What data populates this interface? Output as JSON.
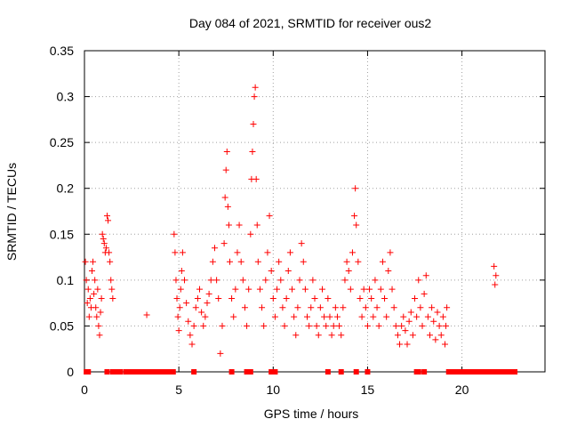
{
  "chart_data": {
    "type": "scatter",
    "title": "Day 084 of 2021, SRMTID for receiver ous2",
    "xlabel": "GPS time / hours",
    "ylabel": "SRMTID / TECUs",
    "xlim": [
      0,
      24.4
    ],
    "ylim": [
      0,
      0.35
    ],
    "xticks": [
      0,
      5,
      10,
      15,
      20
    ],
    "yticks": [
      0,
      0.05,
      0.1,
      0.15,
      0.2,
      0.25,
      0.3,
      0.35
    ],
    "xtick_labels": [
      "0",
      "5",
      "10",
      "15",
      "20"
    ],
    "ytick_labels": [
      "0",
      "0.05",
      "0.1",
      "0.15",
      "0.2",
      "0.25",
      "0.3",
      "0.35"
    ],
    "grid": true,
    "marker": "+",
    "series": [
      {
        "name": "SRMTID",
        "color": "#ff0000",
        "points": [
          [
            0.05,
            0.12
          ],
          [
            0.1,
            0.1
          ],
          [
            0.15,
            0.075
          ],
          [
            0.2,
            0.09
          ],
          [
            0.25,
            0.06
          ],
          [
            0.3,
            0.08
          ],
          [
            0.35,
            0.07
          ],
          [
            0.4,
            0.11
          ],
          [
            0.45,
            0.12
          ],
          [
            0.5,
            0.085
          ],
          [
            0.55,
            0.1
          ],
          [
            0.6,
            0.07
          ],
          [
            0.65,
            0.06
          ],
          [
            0.7,
            0.09
          ],
          [
            0.75,
            0.05
          ],
          [
            0.8,
            0.04
          ],
          [
            0.85,
            0.065
          ],
          [
            0.9,
            0.08
          ],
          [
            0.95,
            0.15
          ],
          [
            1.0,
            0.145
          ],
          [
            1.05,
            0.14
          ],
          [
            1.1,
            0.13
          ],
          [
            1.15,
            0.135
          ],
          [
            1.2,
            0.17
          ],
          [
            1.25,
            0.165
          ],
          [
            1.3,
            0.13
          ],
          [
            1.35,
            0.12
          ],
          [
            1.4,
            0.1
          ],
          [
            1.45,
            0.09
          ],
          [
            1.5,
            0.08
          ],
          [
            3.3,
            0.062
          ],
          [
            4.75,
            0.15
          ],
          [
            4.8,
            0.13
          ],
          [
            4.85,
            0.1
          ],
          [
            4.9,
            0.08
          ],
          [
            4.95,
            0.06
          ],
          [
            5.0,
            0.045
          ],
          [
            5.05,
            0.07
          ],
          [
            5.1,
            0.09
          ],
          [
            5.15,
            0.11
          ],
          [
            5.2,
            0.13
          ],
          [
            5.3,
            0.1
          ],
          [
            5.4,
            0.075
          ],
          [
            5.5,
            0.055
          ],
          [
            5.6,
            0.04
          ],
          [
            5.7,
            0.03
          ],
          [
            5.8,
            0.05
          ],
          [
            5.9,
            0.07
          ],
          [
            6.0,
            0.08
          ],
          [
            6.1,
            0.09
          ],
          [
            6.2,
            0.065
          ],
          [
            6.3,
            0.05
          ],
          [
            6.4,
            0.06
          ],
          [
            6.5,
            0.075
          ],
          [
            6.6,
            0.085
          ],
          [
            6.7,
            0.1
          ],
          [
            6.8,
            0.12
          ],
          [
            6.9,
            0.135
          ],
          [
            7.0,
            0.1
          ],
          [
            7.1,
            0.08
          ],
          [
            7.2,
            0.02
          ],
          [
            7.3,
            0.05
          ],
          [
            7.4,
            0.14
          ],
          [
            7.45,
            0.19
          ],
          [
            7.5,
            0.22
          ],
          [
            7.55,
            0.24
          ],
          [
            7.6,
            0.18
          ],
          [
            7.65,
            0.16
          ],
          [
            7.7,
            0.12
          ],
          [
            7.8,
            0.08
          ],
          [
            7.9,
            0.06
          ],
          [
            8.0,
            0.09
          ],
          [
            8.1,
            0.13
          ],
          [
            8.2,
            0.16
          ],
          [
            8.3,
            0.12
          ],
          [
            8.4,
            0.1
          ],
          [
            8.5,
            0.07
          ],
          [
            8.6,
            0.05
          ],
          [
            8.7,
            0.09
          ],
          [
            8.8,
            0.15
          ],
          [
            8.85,
            0.21
          ],
          [
            8.9,
            0.24
          ],
          [
            8.95,
            0.27
          ],
          [
            9.0,
            0.3
          ],
          [
            9.05,
            0.31
          ],
          [
            9.1,
            0.21
          ],
          [
            9.15,
            0.16
          ],
          [
            9.2,
            0.12
          ],
          [
            9.3,
            0.09
          ],
          [
            9.4,
            0.07
          ],
          [
            9.5,
            0.05
          ],
          [
            9.6,
            0.1
          ],
          [
            9.7,
            0.13
          ],
          [
            9.8,
            0.17
          ],
          [
            9.9,
            0.11
          ],
          [
            10.0,
            0.08
          ],
          [
            10.1,
            0.06
          ],
          [
            10.2,
            0.09
          ],
          [
            10.3,
            0.12
          ],
          [
            10.4,
            0.1
          ],
          [
            10.5,
            0.07
          ],
          [
            10.6,
            0.05
          ],
          [
            10.7,
            0.08
          ],
          [
            10.8,
            0.11
          ],
          [
            10.9,
            0.13
          ],
          [
            11.0,
            0.09
          ],
          [
            11.1,
            0.06
          ],
          [
            11.2,
            0.04
          ],
          [
            11.3,
            0.07
          ],
          [
            11.4,
            0.1
          ],
          [
            11.5,
            0.14
          ],
          [
            11.6,
            0.12
          ],
          [
            11.7,
            0.09
          ],
          [
            11.8,
            0.06
          ],
          [
            11.9,
            0.05
          ],
          [
            12.0,
            0.07
          ],
          [
            12.1,
            0.1
          ],
          [
            12.2,
            0.08
          ],
          [
            12.3,
            0.05
          ],
          [
            12.4,
            0.04
          ],
          [
            12.5,
            0.07
          ],
          [
            12.6,
            0.09
          ],
          [
            12.7,
            0.06
          ],
          [
            12.8,
            0.05
          ],
          [
            12.9,
            0.08
          ],
          [
            13.0,
            0.06
          ],
          [
            13.1,
            0.04
          ],
          [
            13.2,
            0.05
          ],
          [
            13.3,
            0.07
          ],
          [
            13.4,
            0.06
          ],
          [
            13.5,
            0.05
          ],
          [
            13.6,
            0.04
          ],
          [
            13.7,
            0.07
          ],
          [
            13.8,
            0.1
          ],
          [
            13.9,
            0.12
          ],
          [
            14.0,
            0.11
          ],
          [
            14.1,
            0.09
          ],
          [
            14.2,
            0.13
          ],
          [
            14.3,
            0.17
          ],
          [
            14.35,
            0.2
          ],
          [
            14.4,
            0.16
          ],
          [
            14.5,
            0.12
          ],
          [
            14.6,
            0.08
          ],
          [
            14.7,
            0.06
          ],
          [
            14.8,
            0.09
          ],
          [
            14.9,
            0.07
          ],
          [
            15.0,
            0.05
          ],
          [
            15.1,
            0.09
          ],
          [
            15.2,
            0.08
          ],
          [
            15.3,
            0.06
          ],
          [
            15.4,
            0.1
          ],
          [
            15.5,
            0.07
          ],
          [
            15.6,
            0.05
          ],
          [
            15.7,
            0.09
          ],
          [
            15.8,
            0.12
          ],
          [
            15.9,
            0.08
          ],
          [
            16.0,
            0.06
          ],
          [
            16.1,
            0.11
          ],
          [
            16.2,
            0.13
          ],
          [
            16.3,
            0.09
          ],
          [
            16.4,
            0.07
          ],
          [
            16.5,
            0.05
          ],
          [
            16.6,
            0.04
          ],
          [
            16.7,
            0.03
          ],
          [
            16.8,
            0.05
          ],
          [
            16.9,
            0.06
          ],
          [
            17.0,
            0.045
          ],
          [
            17.1,
            0.03
          ],
          [
            17.2,
            0.055
          ],
          [
            17.3,
            0.065
          ],
          [
            17.4,
            0.04
          ],
          [
            17.5,
            0.08
          ],
          [
            17.6,
            0.06
          ],
          [
            17.7,
            0.1
          ],
          [
            17.8,
            0.07
          ],
          [
            17.9,
            0.05
          ],
          [
            18.0,
            0.085
          ],
          [
            18.1,
            0.105
          ],
          [
            18.2,
            0.06
          ],
          [
            18.3,
            0.04
          ],
          [
            18.4,
            0.07
          ],
          [
            18.5,
            0.055
          ],
          [
            18.6,
            0.035
          ],
          [
            18.7,
            0.065
          ],
          [
            18.8,
            0.05
          ],
          [
            18.9,
            0.04
          ],
          [
            19.0,
            0.06
          ],
          [
            19.1,
            0.03
          ],
          [
            19.15,
            0.05
          ],
          [
            19.2,
            0.07
          ],
          [
            21.7,
            0.115
          ],
          [
            21.75,
            0.095
          ],
          [
            21.8,
            0.105
          ]
        ],
        "zero_points_x": [
          0.1,
          0.2,
          1.2,
          1.5,
          1.6,
          1.7,
          1.8,
          1.9,
          2.2,
          2.3,
          2.4,
          2.5,
          2.6,
          2.7,
          2.8,
          2.9,
          3.0,
          3.1,
          3.2,
          3.3,
          3.4,
          3.5,
          3.6,
          3.7,
          3.8,
          3.9,
          4.0,
          4.1,
          4.2,
          4.3,
          4.4,
          4.5,
          4.6,
          4.7,
          5.8,
          7.8,
          8.6,
          8.7,
          8.8,
          9.9,
          10.1,
          12.9,
          13.6,
          14.4,
          15.0,
          17.6,
          17.7,
          18.0,
          19.3,
          19.4,
          19.5,
          19.6,
          19.7,
          19.8,
          19.9,
          20.0,
          20.1,
          20.2,
          20.3,
          20.4,
          20.5,
          20.6,
          20.7,
          20.8,
          20.9,
          21.0,
          21.1,
          21.2,
          21.3,
          21.4,
          21.5,
          21.6,
          21.7,
          21.8,
          21.9,
          22.0,
          22.1,
          22.2,
          22.3,
          22.4,
          22.5,
          22.6,
          22.7,
          22.8
        ]
      }
    ]
  }
}
